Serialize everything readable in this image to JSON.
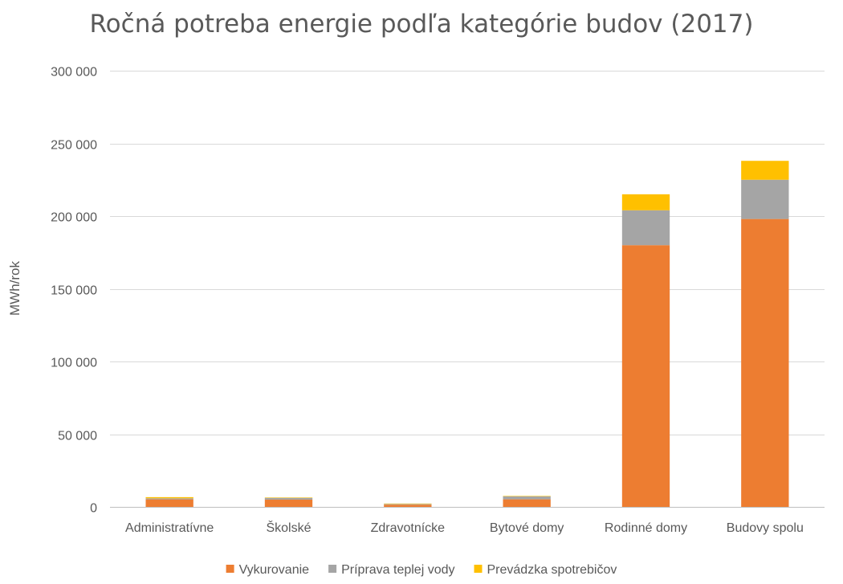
{
  "chart_data": {
    "type": "bar",
    "stacked": true,
    "title": "Ročná potreba energie podľa kategórie budov (2017)",
    "ylabel": "MWh/rok",
    "xlabel": "",
    "ylim": [
      0,
      300000
    ],
    "yticks": [
      0,
      50000,
      100000,
      150000,
      200000,
      250000,
      300000
    ],
    "ytick_labels": [
      "0",
      "50 000",
      "100 000",
      "150 000",
      "200 000",
      "250 000",
      "300 000"
    ],
    "grid": true,
    "legend_position": "bottom",
    "categories": [
      "Administratívne",
      "Školské",
      "Zdravotnícke",
      "Bytové domy",
      "Rodinné domy",
      "Budovy spolu"
    ],
    "series": [
      {
        "name": "Vykurovanie",
        "color": "#ED7D31",
        "values": [
          5200,
          5000,
          1500,
          5200,
          180000,
          198000
        ]
      },
      {
        "name": "Príprava teplej vody",
        "color": "#A5A5A5",
        "values": [
          700,
          1200,
          500,
          2000,
          24000,
          27000
        ]
      },
      {
        "name": "Prevádzka spotrebičov",
        "color": "#FFC000",
        "values": [
          800,
          300,
          300,
          300,
          11000,
          13000
        ]
      }
    ]
  }
}
